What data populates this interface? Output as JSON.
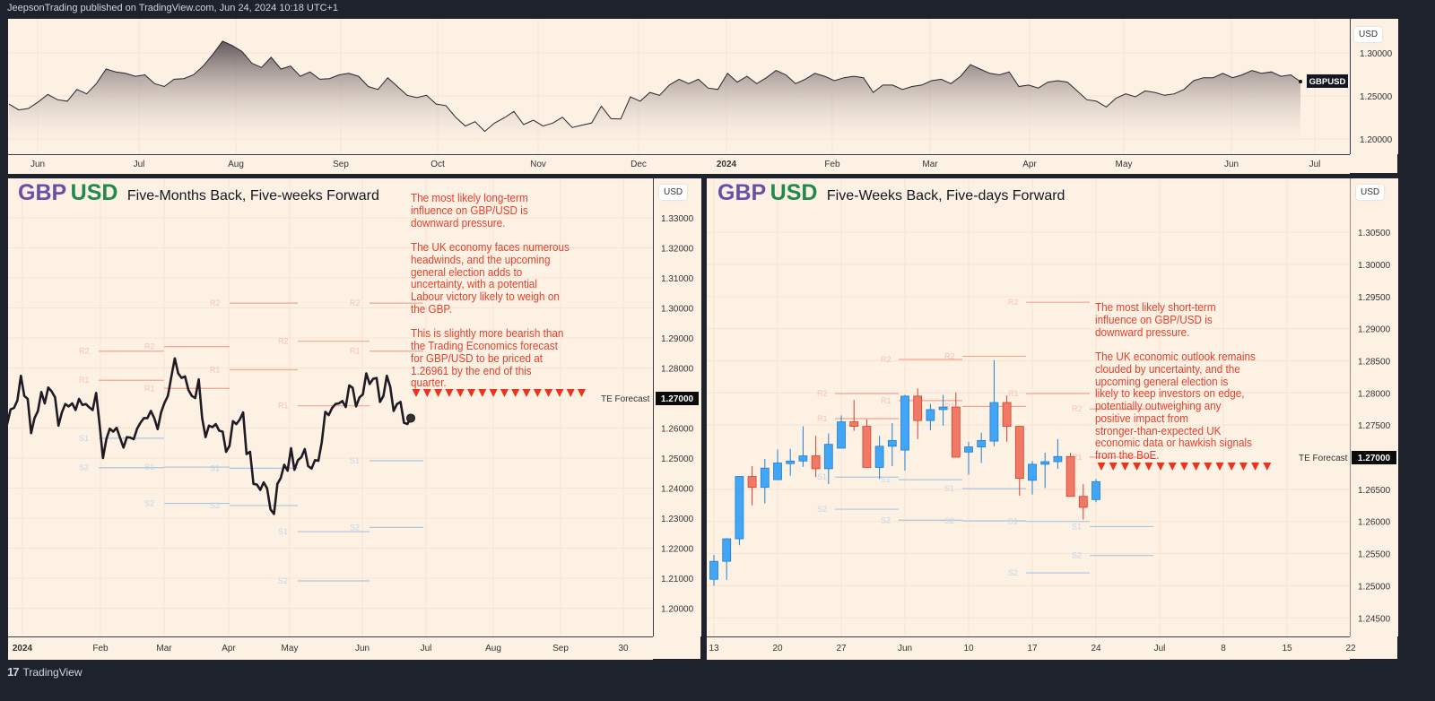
{
  "header": {
    "published": "JeepsonTrading published on TradingView.com, Jun 24, 2024 10:18 UTC+1"
  },
  "footer": {
    "brand": "TradingView",
    "logo_icon": "tradingview-logo"
  },
  "colors": {
    "up": "#42a5f5",
    "down": "#f07a66",
    "line": "#1f1b24",
    "resistance": "#f2a596",
    "support": "#a9c7df",
    "forecast": "#e8351e",
    "title_gbp": "#6a4fa6",
    "title_usd": "#1f8a4c",
    "annotation": "#e2402e"
  },
  "overview": {
    "currency": "USD",
    "symbol_badge": "GBPUSD"
  },
  "left": {
    "title_base": "GBP",
    "title_quote": "USD",
    "subtitle": "Five-Months Back, Five-weeks Forward",
    "currency": "USD",
    "annotation_lines": [
      "The most likely long-term",
      "influence on GBP/USD is",
      "downward pressure.",
      "",
      "The UK economy faces numerous",
      "headwinds, and the upcoming",
      "general election adds to",
      "uncertainty, with a potential",
      "Labour victory likely to weigh on",
      "the GBP.",
      "",
      "This is slightly more bearish than",
      "the Trading Economics forecast",
      "for GBP/USD to be priced at",
      "1.26961 by the end of this",
      "quarter."
    ]
  },
  "right": {
    "title_base": "GBP",
    "title_quote": "USD",
    "subtitle": "Five-Weeks Back, Five-days Forward",
    "currency": "USD",
    "annotation_lines": [
      "The most likely short-term",
      "influence on GBP/USD is",
      "downward pressure.",
      "",
      "The UK economic outlook remains",
      "clouded by uncertainty, and the",
      "upcoming general election is",
      "likely to keep investors on edge,",
      "potentially outweighing any",
      "positive impact from",
      "stronger-than-expected UK",
      "economic data or hawkish signals",
      "from the BoE."
    ]
  },
  "chart_data": [
    {
      "type": "area",
      "symbol": "GBPUSD",
      "yticks": [
        "1.30000",
        "1.25000",
        "1.20000"
      ],
      "ylim": [
        1.185,
        1.335
      ],
      "xticks": [
        "Jun",
        "Jul",
        "Aug",
        "Sep",
        "Oct",
        "Nov",
        "Dec",
        "2024",
        "Feb",
        "Mar",
        "Apr",
        "May",
        "Jun",
        "Jul"
      ],
      "closes": [
        1.2405,
        1.2337,
        1.2354,
        1.2429,
        1.2517,
        1.2456,
        1.2439,
        1.2575,
        1.2524,
        1.2643,
        1.2813,
        1.2779,
        1.2762,
        1.2728,
        1.2745,
        1.2643,
        1.2609,
        1.2694,
        1.2701,
        1.2745,
        1.2847,
        1.2983,
        1.3136,
        1.3085,
        1.3017,
        1.2881,
        1.283,
        1.2949,
        1.2813,
        1.2847,
        1.2728,
        1.2779,
        1.2694,
        1.2701,
        1.2745,
        1.2762,
        1.2728,
        1.2609,
        1.2575,
        1.2711,
        1.2609,
        1.2507,
        1.248,
        1.2507,
        1.2405,
        1.2388,
        1.2252,
        1.215,
        1.2201,
        1.2088,
        1.2184,
        1.2245,
        1.232,
        1.2167,
        1.2218,
        1.215,
        1.2184,
        1.2252,
        1.2133,
        1.216,
        1.2184,
        1.2381,
        1.2235,
        1.2231,
        1.249,
        1.2439,
        1.2541,
        1.2507,
        1.2626,
        1.2694,
        1.2643,
        1.2694,
        1.2592,
        1.2575,
        1.2762,
        1.266,
        1.2728,
        1.2643,
        1.2711,
        1.2796,
        1.2745,
        1.2643,
        1.2694,
        1.2762,
        1.2728,
        1.2677,
        1.2711,
        1.2728,
        1.2711,
        1.2541,
        1.2626,
        1.2626,
        1.2575,
        1.2609,
        1.2626,
        1.2677,
        1.2694,
        1.2643,
        1.2728,
        1.2864,
        1.2813,
        1.2762,
        1.2745,
        1.2779,
        1.2609,
        1.2626,
        1.2592,
        1.266,
        1.2677,
        1.266,
        1.2558,
        1.2456,
        1.2439,
        1.2371,
        1.2473,
        1.2524,
        1.249,
        1.2558,
        1.2541,
        1.2507,
        1.2524,
        1.2575,
        1.2677,
        1.2711,
        1.2711,
        1.2762,
        1.2711,
        1.2745,
        1.2796,
        1.2762,
        1.2779,
        1.2728,
        1.2745,
        1.2667
      ]
    },
    {
      "type": "line",
      "symbol": "GBPUSD",
      "yticks": [
        "1.33000",
        "1.32000",
        "1.31000",
        "1.30000",
        "1.29000",
        "1.28000",
        "1.26000",
        "1.25000",
        "1.24000",
        "1.23000",
        "1.22000",
        "1.21000",
        "1.20000"
      ],
      "ylim": [
        1.19,
        1.34
      ],
      "xticks": [
        "2024",
        "Feb",
        "Mar",
        "Apr",
        "May",
        "Jun",
        "Jul",
        "Aug",
        "Sep",
        "30"
      ],
      "closes": [
        1.2613,
        1.2662,
        1.2667,
        1.2692,
        1.2774,
        1.2707,
        1.2697,
        1.2583,
        1.2633,
        1.2657,
        1.272,
        1.2682,
        1.2735,
        1.2722,
        1.2702,
        1.2608,
        1.2652,
        1.268,
        1.2672,
        1.2682,
        1.266,
        1.2697,
        1.2677,
        1.268,
        1.2669,
        1.266,
        1.2717,
        1.2613,
        1.25,
        1.2563,
        1.2598,
        1.2588,
        1.2601,
        1.2568,
        1.2535,
        1.257,
        1.2568,
        1.2563,
        1.2598,
        1.2618,
        1.2633,
        1.2633,
        1.2657,
        1.2633,
        1.2596,
        1.2652,
        1.2684,
        1.2707,
        1.2772,
        1.2832,
        1.2782,
        1.2767,
        1.2772,
        1.2727,
        1.2707,
        1.27,
        1.2762,
        1.2633,
        1.257,
        1.2608,
        1.2603,
        1.2613,
        1.2591,
        1.2588,
        1.2521,
        1.2541,
        1.2623,
        1.2613,
        1.2628,
        1.2652,
        1.2513,
        1.2521,
        1.2414,
        1.2412,
        1.2394,
        1.2419,
        1.2399,
        1.2329,
        1.2314,
        1.2414,
        1.2434,
        1.2478,
        1.2458,
        1.2533,
        1.2461,
        1.2493,
        1.2503,
        1.253,
        1.2473,
        1.2465,
        1.2493,
        1.2491,
        1.2553,
        1.2654,
        1.2643,
        1.2667,
        1.268,
        1.2682,
        1.269,
        1.267,
        1.2742,
        1.2734,
        1.2672,
        1.2702,
        1.2712,
        1.2782,
        1.2747,
        1.2764,
        1.2767,
        1.2687,
        1.2707,
        1.2774,
        1.2737,
        1.2657,
        1.268,
        1.2687,
        1.2618,
        1.2613,
        1.2633
      ],
      "pivots": [
        {
          "R2": 1.2856,
          "R1": 1.2759,
          "S1": 1.2566,
          "S2": 1.2468
        },
        {
          "R2": 1.2871,
          "R1": 1.2732,
          "S1": 1.247,
          "S2": 1.2349
        },
        {
          "R2": 1.3016,
          "R1": 1.2794,
          "S1": 1.2466,
          "S2": 1.2342
        },
        {
          "R2": 1.2889,
          "R1": 1.2674,
          "S1": 1.2255,
          "S2": 1.2091
        },
        {
          "R2": 1.3016,
          "R1": 1.2856,
          "S1": 1.2491,
          "S2": 1.2269
        }
      ],
      "forecast": {
        "label": "TE Forecast",
        "value": "1.27000"
      }
    },
    {
      "type": "candlestick",
      "symbol": "GBPUSD",
      "yticks": [
        "1.30500",
        "1.30000",
        "1.29500",
        "1.29000",
        "1.28500",
        "1.28000",
        "1.27500",
        "1.26500",
        "1.26000",
        "1.25500",
        "1.25000",
        "1.24500"
      ],
      "ylim": [
        1.2418,
        1.3132
      ],
      "xticks": [
        "13",
        "20",
        "27",
        "Jun",
        "10",
        "17",
        "24",
        "Jul",
        "8",
        "15",
        "22"
      ],
      "ohlc": [
        [
          1.251,
          1.2548,
          1.25,
          1.2538
        ],
        [
          1.2538,
          1.2574,
          1.2509,
          1.2573
        ],
        [
          1.2573,
          1.267,
          1.2563,
          1.267
        ],
        [
          1.267,
          1.2686,
          1.2625,
          1.2653
        ],
        [
          1.2653,
          1.2697,
          1.2628,
          1.2683
        ],
        [
          1.2665,
          1.2712,
          1.2665,
          1.2691
        ],
        [
          1.269,
          1.2713,
          1.2671,
          1.2694
        ],
        [
          1.2694,
          1.2748,
          1.2685,
          1.2702
        ],
        [
          1.2702,
          1.2733,
          1.2669,
          1.2682
        ],
        [
          1.2682,
          1.2737,
          1.2658,
          1.272
        ],
        [
          1.2714,
          1.2765,
          1.2714,
          1.2755
        ],
        [
          1.2755,
          1.2789,
          1.2741,
          1.2748
        ],
        [
          1.2748,
          1.2759,
          1.2684,
          1.2684
        ],
        [
          1.2684,
          1.2733,
          1.2666,
          1.2717
        ],
        [
          1.2717,
          1.2753,
          1.2686,
          1.2726
        ],
        [
          1.2711,
          1.2797,
          1.2679,
          1.2795
        ],
        [
          1.2795,
          1.2807,
          1.2728,
          1.2757
        ],
        [
          1.2757,
          1.2783,
          1.2742,
          1.2774
        ],
        [
          1.2774,
          1.2797,
          1.2749,
          1.2778
        ],
        [
          1.2778,
          1.2801,
          1.27,
          1.27
        ],
        [
          1.2708,
          1.2724,
          1.2673,
          1.2716
        ],
        [
          1.2716,
          1.2738,
          1.2691,
          1.2726
        ],
        [
          1.2725,
          1.2851,
          1.2717,
          1.2785
        ],
        [
          1.2785,
          1.2796,
          1.2724,
          1.2748
        ],
        [
          1.2748,
          1.2748,
          1.264,
          1.2667
        ],
        [
          1.2664,
          1.2694,
          1.2642,
          1.2689
        ],
        [
          1.2689,
          1.2707,
          1.2652,
          1.2693
        ],
        [
          1.2693,
          1.2728,
          1.2682,
          1.2701
        ],
        [
          1.2701,
          1.2707,
          1.2639,
          1.2639
        ],
        [
          1.2639,
          1.2658,
          1.2603,
          1.2622
        ],
        [
          1.2634,
          1.2666,
          1.263,
          1.2662
        ]
      ],
      "pivots": [
        {
          "R2": 1.2799,
          "R1": 1.276,
          "S1": 1.2669,
          "S2": 1.2619
        },
        {
          "R2": 1.2852,
          "R1": 1.2788,
          "S1": 1.2665,
          "S2": 1.2602
        },
        {
          "R2": 1.2857,
          "R1": 1.2779,
          "S1": 1.2651,
          "S2": 1.2601
        },
        {
          "R2": 1.2941,
          "R1": 1.2799,
          "S1": 1.26,
          "S2": 1.252
        },
        {
          "R2": 1.2775,
          "R1": 1.27,
          "S1": 1.2592,
          "S2": 1.2547
        }
      ],
      "forecast": {
        "label": "TE Forecast",
        "value": "1.27000"
      }
    }
  ]
}
